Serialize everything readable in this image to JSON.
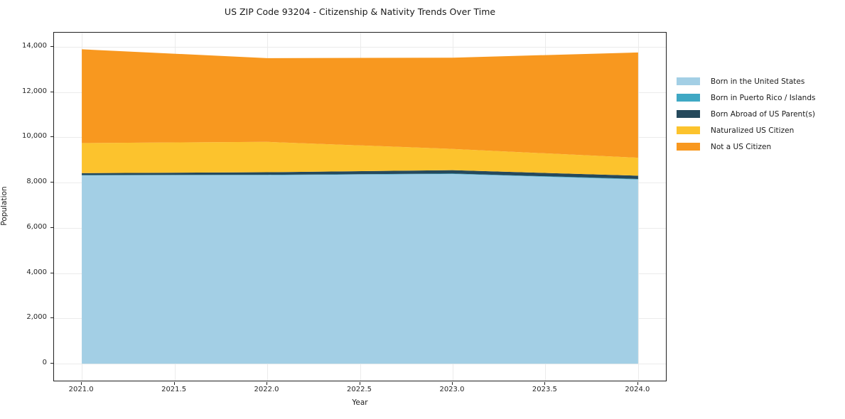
{
  "chart_data": {
    "type": "area",
    "stacked": true,
    "title": "US ZIP Code 93204 - Citizenship & Nativity Trends Over Time",
    "xlabel": "Year",
    "ylabel": "Population",
    "x": [
      2021,
      2022,
      2023,
      2024
    ],
    "series": [
      {
        "name": "Born in the United States",
        "color": "#a3cfe5",
        "values": [
          8320,
          8330,
          8380,
          8140
        ]
      },
      {
        "name": "Born in Puerto Rico / Islands",
        "color": "#3fa8c4",
        "values": [
          15,
          15,
          20,
          20
        ]
      },
      {
        "name": "Born Abroad of US Parent(s)",
        "color": "#25495c",
        "values": [
          85,
          115,
          150,
          145
        ]
      },
      {
        "name": "Naturalized US Citizen",
        "color": "#fcc32d",
        "values": [
          1330,
          1340,
          940,
          795
        ]
      },
      {
        "name": "Not a US Citizen",
        "color": "#f8981f",
        "values": [
          4140,
          3700,
          4030,
          4650
        ]
      }
    ],
    "totals": [
      13890,
      13500,
      13520,
      13750
    ],
    "xlim": [
      2020.85,
      2024.15
    ],
    "ylim": [
      -750,
      14625
    ],
    "xtick_values": [
      2021.0,
      2021.5,
      2022.0,
      2022.5,
      2023.0,
      2023.5,
      2024.0
    ],
    "xtick_labels": [
      "2021.0",
      "2021.5",
      "2022.0",
      "2022.5",
      "2023.0",
      "2023.5",
      "2024.0"
    ],
    "ytick_values": [
      0,
      2000,
      4000,
      6000,
      8000,
      10000,
      12000,
      14000
    ],
    "ytick_labels": [
      "0",
      "2,000",
      "4,000",
      "6,000",
      "8,000",
      "10,000",
      "12,000",
      "14,000"
    ],
    "grid": true,
    "grid_color": "#ebebeb",
    "legend_position": "right",
    "background_color": "#ffffff"
  }
}
